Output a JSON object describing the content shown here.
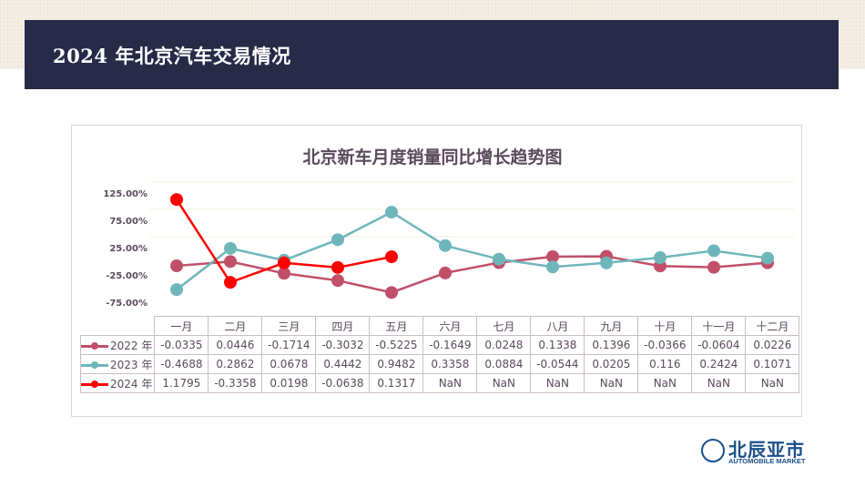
{
  "header": {
    "title": "2024 年北京汽车交易情况"
  },
  "logo": {
    "cn": "北辰亚市",
    "en": "AUTOMOBILE MARKET"
  },
  "chart_data": {
    "type": "line",
    "title": "北京新车月度销量同比增长趋势图",
    "categories": [
      "一月",
      "二月",
      "三月",
      "四月",
      "五月",
      "六月",
      "七月",
      "八月",
      "九月",
      "十月",
      "十一月",
      "十二月"
    ],
    "yticks": [
      "125.00%",
      "75.00%",
      "25.00%",
      "-25.00%",
      "-75.00%"
    ],
    "ytick_values": [
      1.25,
      0.75,
      0.25,
      -0.25,
      -0.75
    ],
    "ylim": [
      -0.75,
      1.5
    ],
    "series": [
      {
        "name": "2022 年",
        "color": "#c0506a",
        "values": [
          -0.0335,
          0.0446,
          -0.1714,
          -0.3032,
          -0.5225,
          -0.1649,
          0.0248,
          0.1338,
          0.1396,
          -0.0366,
          -0.0604,
          0.0226
        ]
      },
      {
        "name": "2023 年",
        "color": "#6fb6bb",
        "values": [
          -0.4688,
          0.2862,
          0.0678,
          0.4442,
          0.9482,
          0.3358,
          0.0884,
          -0.0544,
          0.0205,
          0.116,
          0.2424,
          0.1071
        ]
      },
      {
        "name": "2024 年",
        "color": "#ff0000",
        "values": [
          1.1795,
          -0.3358,
          0.0198,
          -0.0638,
          0.1317,
          null,
          null,
          null,
          null,
          null,
          null,
          null
        ]
      }
    ],
    "table_text": [
      [
        "-0.0335",
        "0.0446",
        "-0.1714",
        "-0.3032",
        "-0.5225",
        "-0.1649",
        "0.0248",
        "0.1338",
        "0.1396",
        "-0.0366",
        "-0.0604",
        "0.0226"
      ],
      [
        "-0.4688",
        "0.2862",
        "0.0678",
        "0.4442",
        "0.9482",
        "0.3358",
        "0.0884",
        "-0.0544",
        "0.0205",
        "0.116",
        "0.2424",
        "0.1071"
      ],
      [
        "1.1795",
        "-0.3358",
        "0.0198",
        "-0.0638",
        "0.1317",
        "NaN",
        "NaN",
        "NaN",
        "NaN",
        "NaN",
        "NaN",
        "NaN"
      ]
    ]
  }
}
